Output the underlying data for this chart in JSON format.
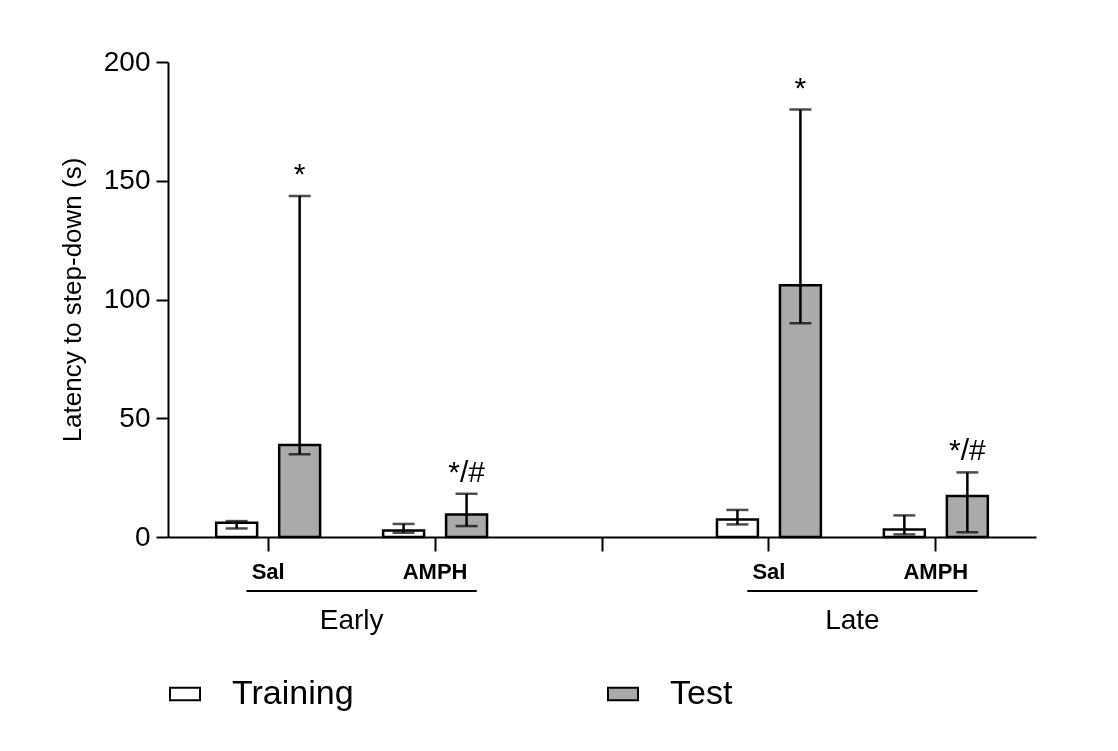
{
  "chart_data": {
    "type": "bar",
    "ylabel": "Latency to step-down (s)",
    "categories": [
      "Sal",
      "AMPH",
      null,
      "Sal",
      "AMPH"
    ],
    "series": [
      {
        "name": "Training",
        "color": "#ffffff",
        "values": [
          6,
          2.7,
          null,
          7.4,
          3.2
        ],
        "errors": [
          [
            3.6,
            6.7
          ],
          [
            1.8,
            5.5
          ],
          null,
          [
            5.3,
            11.4
          ],
          [
            1.1,
            9.1
          ]
        ]
      },
      {
        "name": "Test",
        "color": "#aaaaaa",
        "values": [
          38.7,
          9.5,
          null,
          106,
          17.3
        ],
        "errors": [
          [
            34.8,
            143.6
          ],
          [
            4.6,
            18.2
          ],
          null,
          [
            90,
            180
          ],
          [
            2,
            27.2
          ]
        ],
        "value_labels": [
          null,
          "*/#",
          null,
          null,
          "*/#"
        ]
      }
    ],
    "ylim": [
      0,
      200
    ],
    "yticks": [
      0,
      50,
      100,
      150,
      200
    ],
    "grid": false,
    "legend": "bottom",
    "annotations": [
      "Early",
      "Late",
      "*",
      "*"
    ]
  }
}
